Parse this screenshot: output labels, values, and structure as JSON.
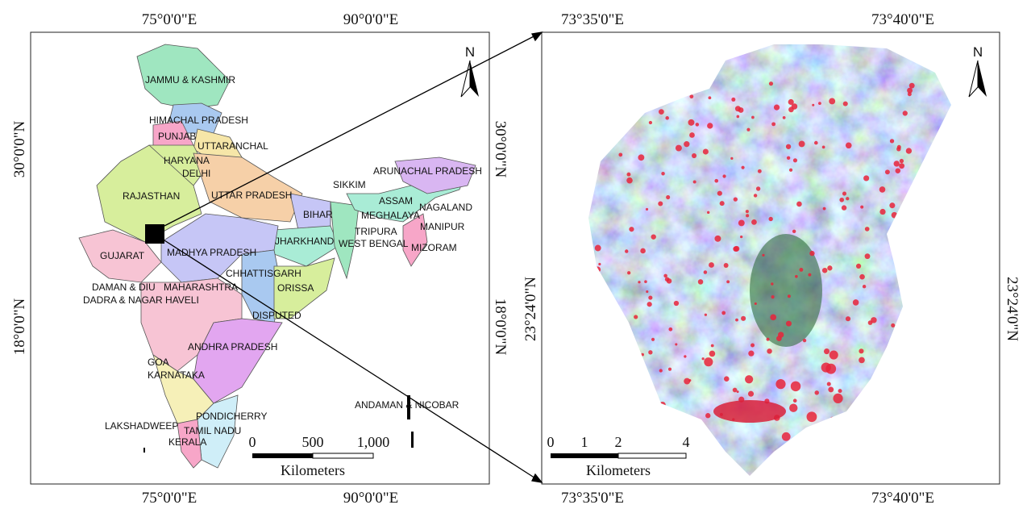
{
  "left_map": {
    "top_labels": [
      "75°0'0\"E",
      "90°0'0\"E"
    ],
    "bottom_labels": [
      "75°0'0\"E",
      "90°0'0\"E"
    ],
    "left_labels": [
      "30°0'0\"N",
      "18°0'0\"N"
    ],
    "right_labels": [
      "30°0'0\"N",
      "18°0'0\"N"
    ],
    "north": "N",
    "states": [
      "JAMMU & KASHMIR",
      "HIMACHAL PRADESH",
      "PUNJAB",
      "UTTARANCHAL",
      "HARYANA",
      "DELHI",
      "RAJASTHAN",
      "UTTAR PRADESH",
      "SIKKIM",
      "ARUNACHAL PRADESH",
      "ASSAM",
      "NAGALAND",
      "BIHAR",
      "MEGHALAYA",
      "MANIPUR",
      "TRIPURA",
      "JHARKHAND",
      "WEST BENGAL",
      "MIZORAM",
      "GUJARAT",
      "MADHYA PRADESH",
      "CHHATTISGARH",
      "DAMAN & DIU",
      "MAHARASHTRA",
      "DADRA & NAGAR HAVELI",
      "ORISSA",
      "DISPUTED",
      "ANDHRA PRADESH",
      "GOA",
      "KARNATAKA",
      "ANDAMAN & NICOBAR",
      "PONDICHERRY",
      "LAKSHADWEEP",
      "TAMIL NADU",
      "KERALA"
    ],
    "scale": {
      "ticks": [
        "0",
        "500",
        "1,000"
      ],
      "unit": "Kilometers"
    }
  },
  "right_map": {
    "top_labels": [
      "73°35'0\"E",
      "73°40'0\"E"
    ],
    "bottom_labels": [
      "73°35'0\"E",
      "73°40'0\"E"
    ],
    "left_labels": [
      "23°24'0\"N"
    ],
    "right_labels": [
      "23°24'0\"N"
    ],
    "north": "N",
    "scale": {
      "ticks": [
        "0",
        "1",
        "2",
        "4"
      ],
      "unit": "Kilometers"
    }
  }
}
